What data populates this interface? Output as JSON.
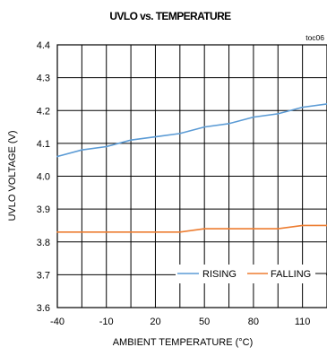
{
  "chart_data": {
    "type": "line",
    "title": "UVLO vs. TEMPERATURE",
    "figure_id": "toc06",
    "xlabel": "AMBIENT TEMPERATURE (°C)",
    "ylabel": "UVLO VOLTAGE (V)",
    "xlim": [
      -40,
      125
    ],
    "ylim": [
      3.6,
      4.4
    ],
    "x_ticks": [
      -40,
      -10,
      20,
      50,
      80,
      110
    ],
    "x_tick_labels": [
      "-40",
      "-10",
      "20",
      "50",
      "80",
      "110"
    ],
    "y_ticks": [
      3.6,
      3.7,
      3.8,
      3.9,
      4.0,
      4.1,
      4.2,
      4.3,
      4.4
    ],
    "y_tick_labels": [
      "3.6",
      "3.7",
      "3.8",
      "3.9",
      "4.0",
      "4.1",
      "4.2",
      "4.3",
      "4.4"
    ],
    "x_grid": [
      -40,
      -25,
      -10,
      5,
      20,
      35,
      50,
      65,
      80,
      95,
      110,
      125
    ],
    "grid": true,
    "legend_position": "bottom-right",
    "series": [
      {
        "name": "RISING",
        "color": "#5b9bd5",
        "x": [
          -40,
          -25,
          -10,
          5,
          20,
          35,
          50,
          65,
          80,
          95,
          110,
          125
        ],
        "values": [
          4.06,
          4.08,
          4.09,
          4.11,
          4.12,
          4.13,
          4.15,
          4.16,
          4.18,
          4.19,
          4.21,
          4.22
        ]
      },
      {
        "name": "FALLING",
        "color": "#ed7d31",
        "x": [
          -40,
          -25,
          -10,
          5,
          20,
          35,
          50,
          65,
          80,
          95,
          110,
          125
        ],
        "values": [
          3.83,
          3.83,
          3.83,
          3.83,
          3.83,
          3.83,
          3.84,
          3.84,
          3.84,
          3.84,
          3.85,
          3.85
        ]
      }
    ]
  }
}
